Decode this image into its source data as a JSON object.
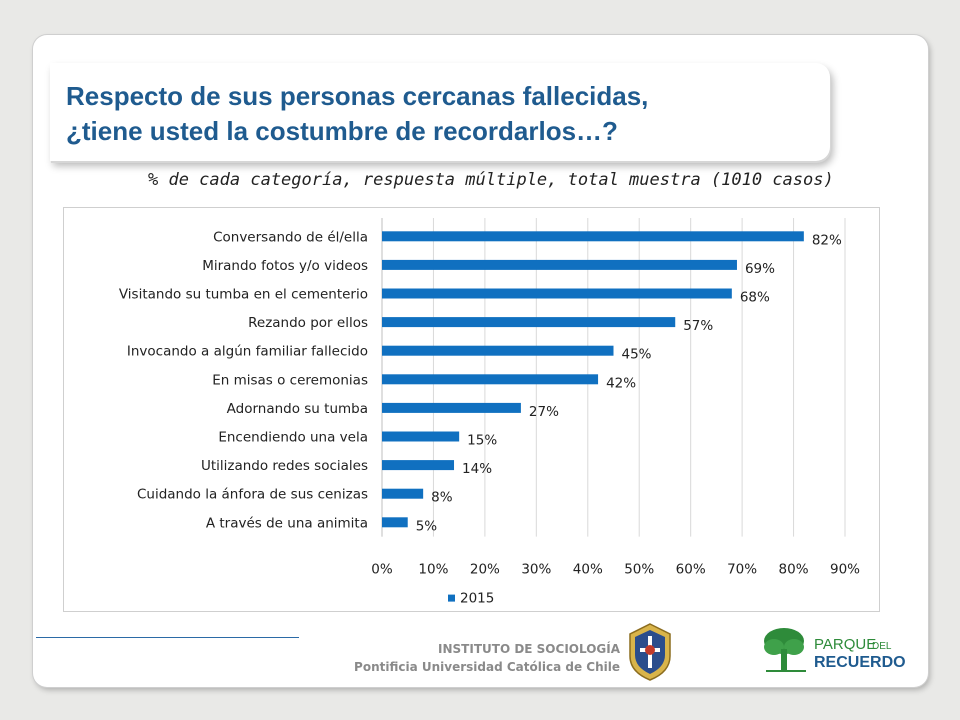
{
  "title_line1": "Respecto de sus personas cercanas fallecidas,",
  "title_line2": "¿tiene usted la costumbre de recordarlos…?",
  "subtitle": "% de cada categoría, respuesta múltiple, total muestra (1010 casos)",
  "footer": {
    "institute": "INSTITUTO DE SOCIOLOGÍA",
    "university": "Pontificia Universidad Católica de Chile",
    "logo_text_1": "PARQUE",
    "logo_text_2": "DEL",
    "logo_text_3": "RECUERDO"
  },
  "colors": {
    "bar": "#1070c0",
    "title": "#1f5b8f",
    "logo_green": "#2e8b3a",
    "logo_blue": "#1f5b8f"
  },
  "chart_data": {
    "type": "bar",
    "orientation": "horizontal",
    "categories": [
      "Conversando de él/ella",
      "Mirando fotos y/o videos",
      "Visitando su tumba en el cementerio",
      "Rezando por ellos",
      "Invocando a algún familiar fallecido",
      "En misas o ceremonias",
      "Adornando su tumba",
      "Encendiendo una vela",
      "Utilizando redes sociales",
      "Cuidando la ánfora de sus cenizas",
      "A través de una animita"
    ],
    "series": [
      {
        "name": "2015",
        "values": [
          82,
          69,
          68,
          57,
          45,
          42,
          27,
          15,
          14,
          8,
          5
        ]
      }
    ],
    "value_labels": [
      "82%",
      "69%",
      "68%",
      "57%",
      "45%",
      "42%",
      "27%",
      "15%",
      "14%",
      "8%",
      "5%"
    ],
    "xlim": [
      0,
      90
    ],
    "xticks": [
      "0%",
      "10%",
      "20%",
      "30%",
      "40%",
      "50%",
      "60%",
      "70%",
      "80%",
      "90%"
    ],
    "grid": true,
    "legend": "bottom"
  }
}
